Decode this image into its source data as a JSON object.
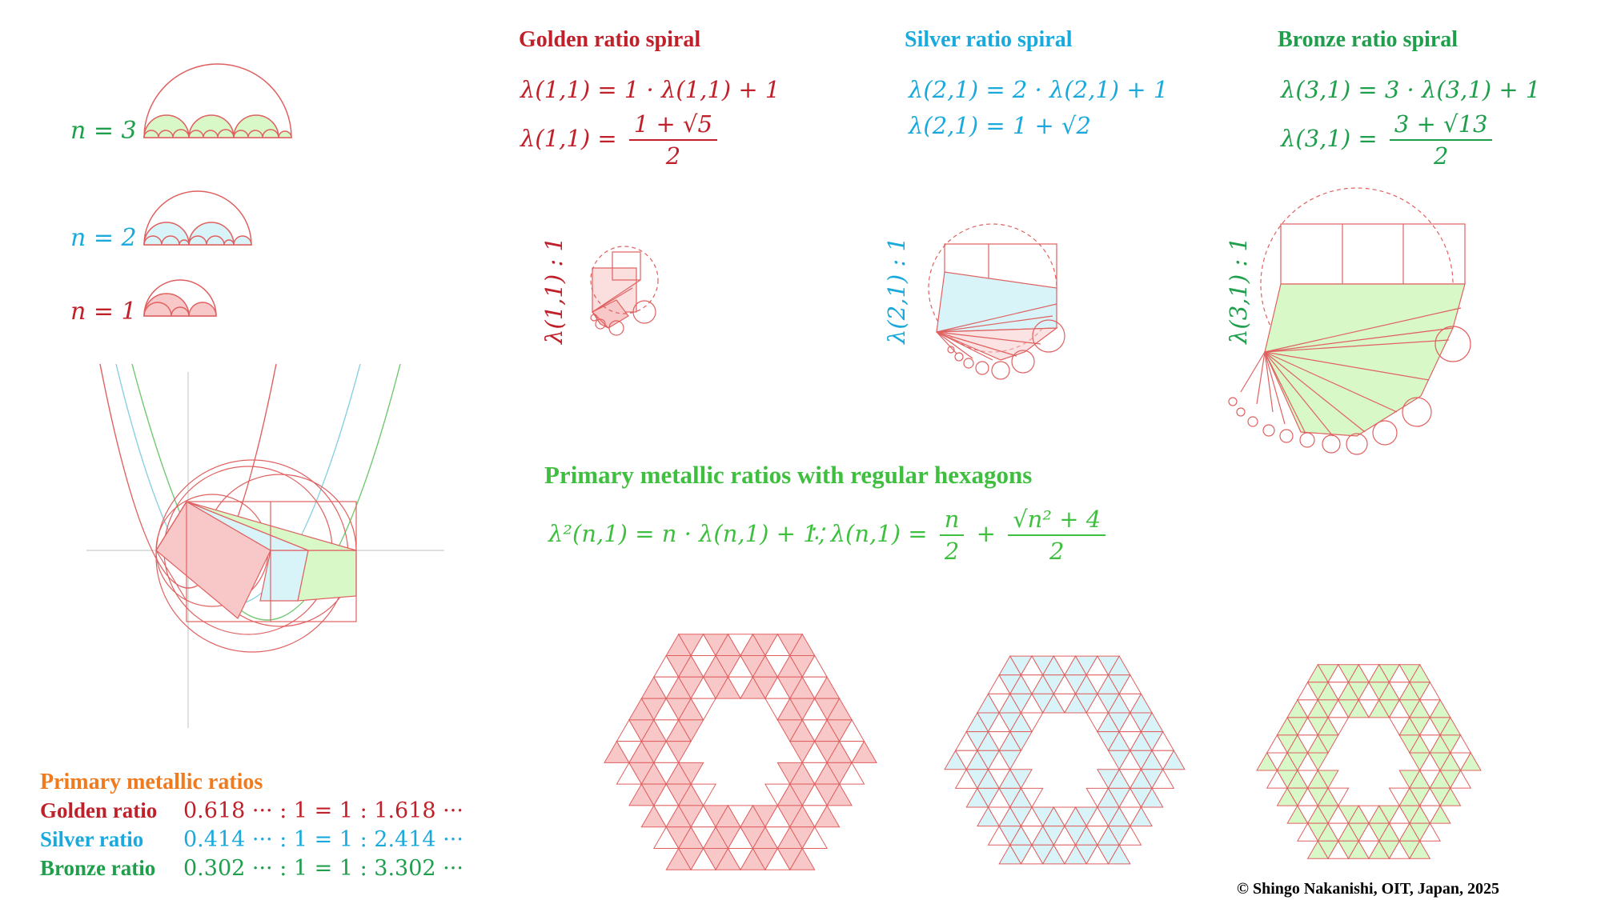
{
  "titles": {
    "golden": "Golden ratio spiral",
    "silver": "Silver ratio spiral",
    "bronze": "Bronze ratio spiral",
    "hexagons": "Primary metallic ratios with regular hexagons",
    "ratios_heading": "Primary metallic ratios"
  },
  "equations": {
    "golden_eq1": "λ(1,1) = 1 · λ(1,1) + 1",
    "golden_eq2_lhs": "λ(1,1) =",
    "golden_eq2_num": "1 + √5",
    "golden_eq2_den": "2",
    "silver_eq1": "λ(2,1) = 2 · λ(2,1) + 1",
    "silver_eq2": "λ(2,1) = 1 + √2",
    "bronze_eq1": "λ(3,1) = 3 · λ(3,1) + 1",
    "bronze_eq2_lhs": "λ(3,1) =",
    "bronze_eq2_num": "3 + √13",
    "bronze_eq2_den": "2",
    "general_eq": "λ²(n,1) = n · λ(n,1) + 1,",
    "general_sol_lhs": "∵ λ(n,1) =",
    "general_sol_f1_num": "n",
    "general_sol_f1_den": "2",
    "general_sol_plus": "+",
    "general_sol_f2_num": "√n² + 4",
    "general_sol_f2_den": "2"
  },
  "n_labels": {
    "n3": "n = 3",
    "n2": "n = 2",
    "n1": "n = 1"
  },
  "spiral_labels": {
    "golden": "λ(1,1) : 1",
    "silver": "λ(2,1) : 1",
    "bronze": "λ(3,1) : 1"
  },
  "ratios": [
    {
      "name": "Golden ratio",
      "value": "0.618 ··· : 1 = 1 : 1.618 ···"
    },
    {
      "name": "Silver ratio",
      "value": "0.414 ··· : 1 = 1 : 2.414 ···"
    },
    {
      "name": "Bronze ratio",
      "value": "0.302 ··· : 1 = 1 : 3.302 ···"
    }
  ],
  "copyright": "© Shingo Nakanishi, OIT, Japan, 2025",
  "colors": {
    "golden": "#c0202a",
    "silver": "#1aa9dc",
    "bronze": "#1f9e4c",
    "green_title": "#3fbf3f",
    "orange": "#f07a1e",
    "stroke": "#e06060",
    "fill_gold": "#f8c8c8",
    "fill_silver": "#d8f4f8",
    "fill_bronze": "#d8f8c8"
  }
}
